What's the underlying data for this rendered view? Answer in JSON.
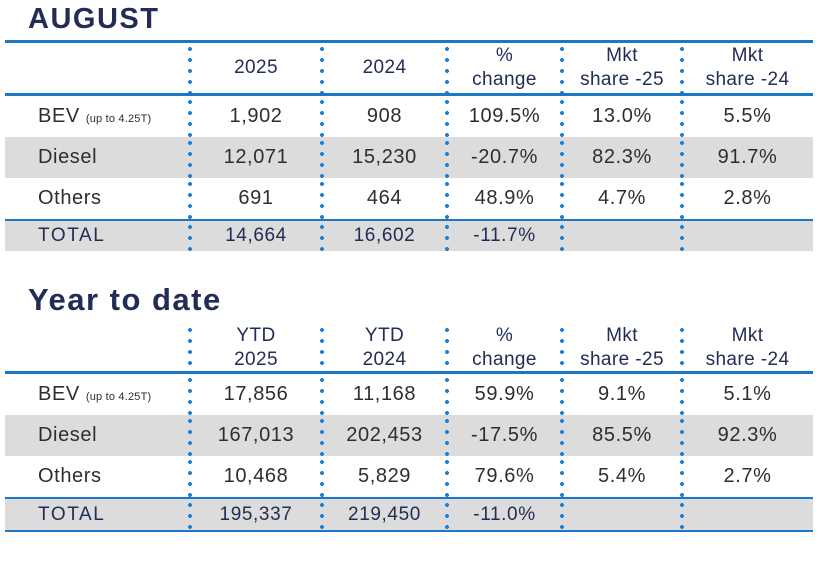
{
  "colors": {
    "navy": "#232c54",
    "blue_line": "#1b78c6",
    "dot_blue": "#1e82d6",
    "row_shade_gray": "#dcdcdc",
    "data_text": "#2e2e2e"
  },
  "tables": [
    {
      "title": "AUGUST",
      "columns": [
        {
          "line1": "",
          "line2": ""
        },
        {
          "line1": "2025",
          "line2": ""
        },
        {
          "line1": "2024",
          "line2": ""
        },
        {
          "line1": "%",
          "line2": "change"
        },
        {
          "line1": "Mkt",
          "line2": "share -25"
        },
        {
          "line1": "Mkt",
          "line2": "share -24"
        }
      ],
      "rows": [
        {
          "label": "BEV",
          "note": "(up to 4.25T)",
          "values": [
            "1,902",
            "908",
            "109.5%",
            "13.0%",
            "5.5%"
          ]
        },
        {
          "label": "Diesel",
          "note": "",
          "values": [
            "12,071",
            "15,230",
            "-20.7%",
            "82.3%",
            "91.7%"
          ]
        },
        {
          "label": "Others",
          "note": "",
          "values": [
            "691",
            "464",
            "48.9%",
            "4.7%",
            "2.8%"
          ]
        }
      ],
      "total": {
        "label": "TOTAL",
        "values": [
          "14,664",
          "16,602",
          "-11.7%",
          "",
          ""
        ]
      }
    },
    {
      "title": "Year to date",
      "columns": [
        {
          "line1": "",
          "line2": ""
        },
        {
          "line1": "YTD",
          "line2": "2025"
        },
        {
          "line1": "YTD",
          "line2": "2024"
        },
        {
          "line1": "%",
          "line2": "change"
        },
        {
          "line1": "Mkt",
          "line2": "share -25"
        },
        {
          "line1": "Mkt",
          "line2": "share -24"
        }
      ],
      "rows": [
        {
          "label": "BEV",
          "note": "(up to 4.25T)",
          "values": [
            "17,856",
            "11,168",
            "59.9%",
            "9.1%",
            "5.1%"
          ]
        },
        {
          "label": "Diesel",
          "note": "",
          "values": [
            "167,013",
            "202,453",
            "-17.5%",
            "85.5%",
            "92.3%"
          ]
        },
        {
          "label": "Others",
          "note": "",
          "values": [
            "10,468",
            "5,829",
            "79.6%",
            "5.4%",
            "2.7%"
          ]
        }
      ],
      "total": {
        "label": "TOTAL",
        "values": [
          "195,337",
          "219,450",
          "-11.0%",
          "",
          ""
        ]
      }
    }
  ],
  "chart_data": [
    {
      "type": "table",
      "title": "AUGUST",
      "columns": [
        "",
        "2025",
        "2024",
        "% change",
        "Mkt share -25",
        "Mkt share -24"
      ],
      "rows": [
        [
          "BEV (up to 4.25T)",
          "1,902",
          "908",
          "109.5%",
          "13.0%",
          "5.5%"
        ],
        [
          "Diesel",
          "12,071",
          "15,230",
          "-20.7%",
          "82.3%",
          "91.7%"
        ],
        [
          "Others",
          "691",
          "464",
          "48.9%",
          "4.7%",
          "2.8%"
        ],
        [
          "TOTAL",
          "14,664",
          "16,602",
          "-11.7%",
          "",
          ""
        ]
      ]
    },
    {
      "type": "table",
      "title": "Year to date",
      "columns": [
        "",
        "YTD 2025",
        "YTD 2024",
        "% change",
        "Mkt share -25",
        "Mkt share -24"
      ],
      "rows": [
        [
          "BEV (up to 4.25T)",
          "17,856",
          "11,168",
          "59.9%",
          "9.1%",
          "5.1%"
        ],
        [
          "Diesel",
          "167,013",
          "202,453",
          "-17.5%",
          "85.5%",
          "92.3%"
        ],
        [
          "Others",
          "10,468",
          "5,829",
          "79.6%",
          "5.4%",
          "2.7%"
        ],
        [
          "TOTAL",
          "195,337",
          "219,450",
          "-11.0%",
          "",
          ""
        ]
      ]
    }
  ]
}
